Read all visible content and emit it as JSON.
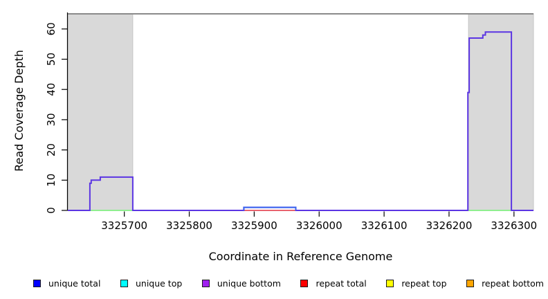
{
  "figure": {
    "x_label": "Coordinate in Reference Genome",
    "y_label": "Read Coverage Depth"
  },
  "legend": {
    "items": [
      {
        "label": "unique total",
        "color": "#0000ff"
      },
      {
        "label": "unique top",
        "color": "#00ffff"
      },
      {
        "label": "unique bottom",
        "color": "#a020f0"
      },
      {
        "label": "repeat total",
        "color": "#ff0000"
      },
      {
        "label": "repeat top",
        "color": "#ffff00"
      },
      {
        "label": "repeat bottom",
        "color": "#ffa500"
      }
    ]
  },
  "chart_data": {
    "type": "line",
    "title": "",
    "xlabel": "Coordinate in Reference Genome",
    "ylabel": "Read Coverage Depth",
    "xlim": [
      3325613,
      3326330
    ],
    "ylim": [
      0,
      65
    ],
    "x_ticks": [
      3325700,
      3325800,
      3325900,
      3326000,
      3326100,
      3326200,
      3326300
    ],
    "y_ticks": [
      0,
      10,
      20,
      30,
      40,
      50,
      60
    ],
    "grid": false,
    "legend_position": "bottom",
    "top_boundary_value": 65,
    "shaded_regions": [
      {
        "x1": 3325613,
        "x2": 3325713
      },
      {
        "x1": 3326230,
        "x2": 3326330
      }
    ],
    "series": [
      {
        "name": "unique coverage profile (total/bottom overlaid)",
        "color": "#5b35e3",
        "style": "step",
        "steps": [
          [
            3325613,
            0
          ],
          [
            3325647,
            9
          ],
          [
            3325649,
            10
          ],
          [
            3325663,
            11
          ],
          [
            3325713,
            0
          ],
          [
            3325884,
            1
          ],
          [
            3325964,
            0
          ],
          [
            3326229,
            39
          ],
          [
            3326231,
            57
          ],
          [
            3326252,
            58
          ],
          [
            3326256,
            59
          ],
          [
            3326296,
            0
          ],
          [
            3326330,
            0
          ]
        ]
      },
      {
        "name": "unique total bump",
        "color": "#3b64ee",
        "style": "step",
        "steps": [
          [
            3325884,
            0
          ],
          [
            3325884,
            1
          ],
          [
            3325964,
            1
          ],
          [
            3325964,
            0
          ]
        ]
      }
    ],
    "zero_level_lines": [
      {
        "name": "zero-line-green",
        "color": "#90ee90",
        "spans": [
          [
            3325647,
            3325713
          ],
          [
            3326230,
            3326296
          ]
        ]
      },
      {
        "name": "zero-line-red",
        "color": "#e8636e",
        "spans": [
          [
            3325884,
            3325964
          ]
        ]
      }
    ],
    "colors": {
      "shaded_region_fill": "#d9d9d9",
      "shaded_region_border": "#c4c4c4",
      "top_boundary_line": "#8a8a8a",
      "axis": "#000000"
    }
  }
}
